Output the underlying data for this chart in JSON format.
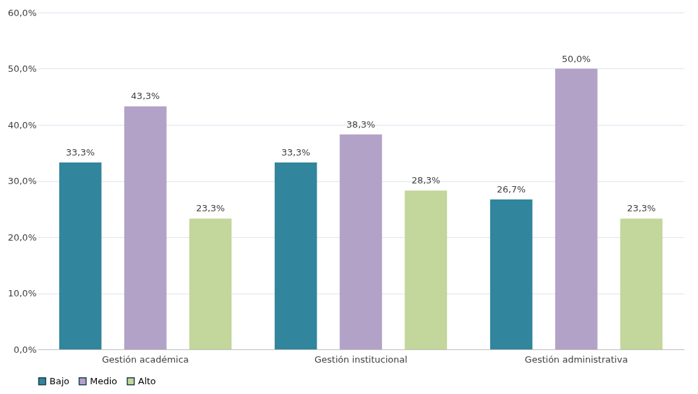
{
  "chart_data": {
    "type": "bar",
    "categories": [
      "Gestión académica",
      "Gestión institucional",
      "Gestión administrativa"
    ],
    "series": [
      {
        "name": "Bajo",
        "color": "#31859c",
        "values": [
          33.3,
          33.3,
          26.7
        ],
        "value_labels": [
          "33,3%",
          "33,3%",
          "26,7%"
        ]
      },
      {
        "name": "Medio",
        "color": "#b3a2c7",
        "values": [
          43.3,
          38.3,
          50.0
        ],
        "value_labels": [
          "43,3%",
          "38,3%",
          "50,0%"
        ]
      },
      {
        "name": "Alto",
        "color": "#c3d69b",
        "values": [
          23.3,
          28.3,
          23.3
        ],
        "value_labels": [
          "23,3%",
          "28,3%",
          "23,3%"
        ]
      }
    ],
    "ylim": [
      0,
      60
    ],
    "yticks": [
      {
        "value": 0,
        "label": "0,0%"
      },
      {
        "value": 10,
        "label": "10,0%"
      },
      {
        "value": 20,
        "label": "20,0%"
      },
      {
        "value": 30,
        "label": "30,0%"
      },
      {
        "value": 40,
        "label": "40,0%"
      },
      {
        "value": 50,
        "label": "50,0%"
      },
      {
        "value": 60,
        "label": "60,0%"
      }
    ],
    "grid": "y",
    "legend": "bottom"
  }
}
